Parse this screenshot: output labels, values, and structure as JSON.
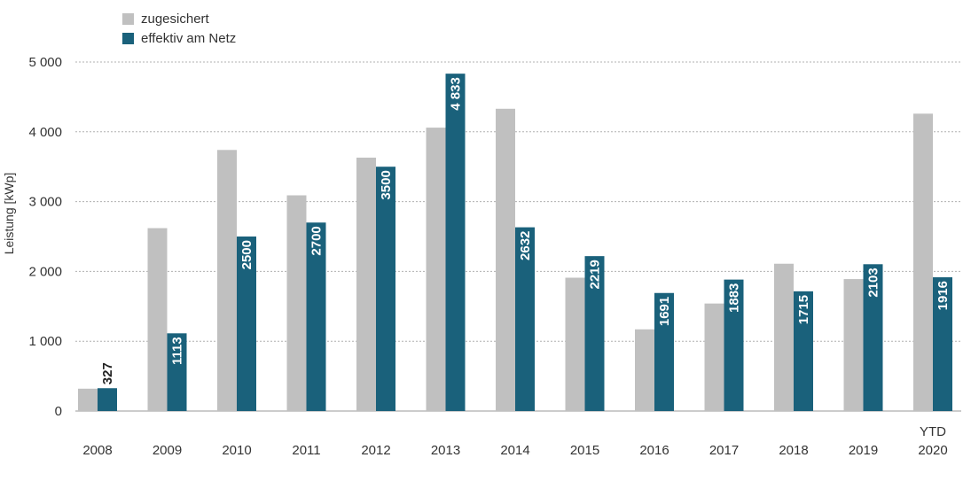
{
  "chart_data": {
    "type": "bar",
    "ylabel": "Leistung [kWp]",
    "ylim": [
      0,
      5000
    ],
    "yticks": [
      0,
      1000,
      2000,
      3000,
      4000,
      5000
    ],
    "ytick_labels": [
      "0",
      "1 000",
      "2 000",
      "3 000",
      "4 000",
      "5 000"
    ],
    "grid": "horizontal-dashed",
    "legend_position": "top-left",
    "categories": [
      "2008",
      "2009",
      "2010",
      "2011",
      "2012",
      "2013",
      "2014",
      "2015",
      "2016",
      "2017",
      "2018",
      "2019",
      "YTD 2020"
    ],
    "category_lines": [
      [
        "2008"
      ],
      [
        "2009"
      ],
      [
        "2010"
      ],
      [
        "2011"
      ],
      [
        "2012"
      ],
      [
        "2013"
      ],
      [
        "2014"
      ],
      [
        "2015"
      ],
      [
        "2016"
      ],
      [
        "2017"
      ],
      [
        "2018"
      ],
      [
        "2019"
      ],
      [
        "YTD",
        "2020"
      ]
    ],
    "series": [
      {
        "name": "zugesichert",
        "color": "#c0c0c0",
        "values": [
          320,
          2620,
          3740,
          3090,
          3630,
          4060,
          4330,
          1910,
          1170,
          1540,
          2110,
          1890,
          4260
        ]
      },
      {
        "name": "effektiv am Netz",
        "color": "#1a617b",
        "values": [
          327,
          1113,
          2500,
          2700,
          3500,
          4833,
          2632,
          2219,
          1691,
          1883,
          1715,
          2103,
          1916
        ],
        "data_labels": [
          "327",
          "1113",
          "2500",
          "2700",
          "3500",
          "4 833",
          "2632",
          "2219",
          "1691",
          "1883",
          "1715",
          "2103",
          "1916"
        ]
      }
    ]
  }
}
